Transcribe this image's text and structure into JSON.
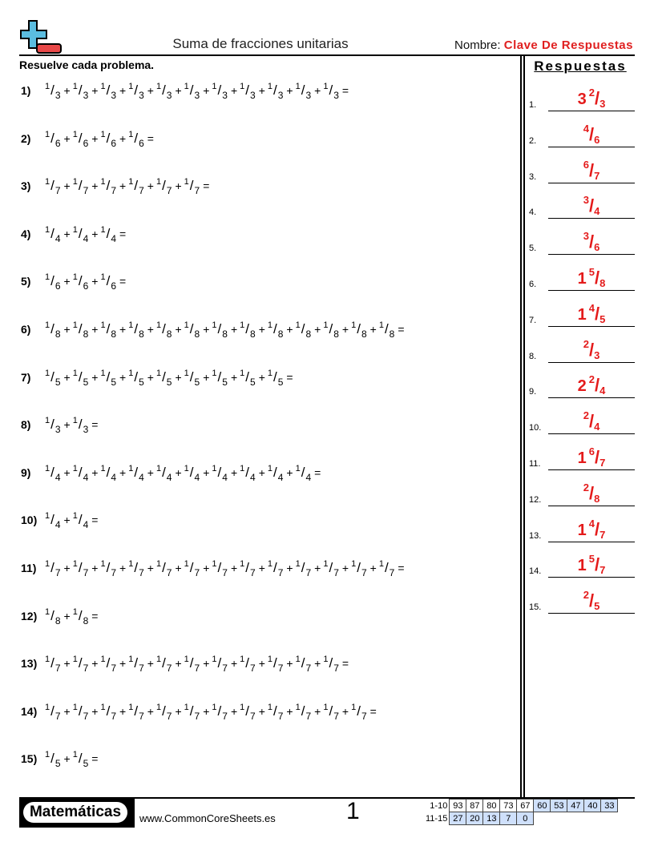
{
  "header": {
    "title": "Suma de fracciones unitarias",
    "name_label": "Nombre:",
    "name_value": "Clave De Respuestas"
  },
  "instructions": "Resuelve cada problema.",
  "answers_title": "Respuestas",
  "problems": [
    {
      "num": "1)",
      "n": "1",
      "d": "3",
      "count": 11
    },
    {
      "num": "2)",
      "n": "1",
      "d": "6",
      "count": 4
    },
    {
      "num": "3)",
      "n": "1",
      "d": "7",
      "count": 6
    },
    {
      "num": "4)",
      "n": "1",
      "d": "4",
      "count": 3
    },
    {
      "num": "5)",
      "n": "1",
      "d": "6",
      "count": 3
    },
    {
      "num": "6)",
      "n": "1",
      "d": "8",
      "count": 13
    },
    {
      "num": "7)",
      "n": "1",
      "d": "5",
      "count": 9
    },
    {
      "num": "8)",
      "n": "1",
      "d": "3",
      "count": 2
    },
    {
      "num": "9)",
      "n": "1",
      "d": "4",
      "count": 10
    },
    {
      "num": "10)",
      "n": "1",
      "d": "4",
      "count": 2
    },
    {
      "num": "11)",
      "n": "1",
      "d": "7",
      "count": 13
    },
    {
      "num": "12)",
      "n": "1",
      "d": "8",
      "count": 2
    },
    {
      "num": "13)",
      "n": "1",
      "d": "7",
      "count": 11
    },
    {
      "num": "14)",
      "n": "1",
      "d": "7",
      "count": 12
    },
    {
      "num": "15)",
      "n": "1",
      "d": "5",
      "count": 2
    }
  ],
  "plus": "+",
  "equals": "=",
  "slash": "/",
  "answers": [
    {
      "label": "1.",
      "whole": "3",
      "n": "2",
      "d": "3"
    },
    {
      "label": "2.",
      "whole": "",
      "n": "4",
      "d": "6"
    },
    {
      "label": "3.",
      "whole": "",
      "n": "6",
      "d": "7"
    },
    {
      "label": "4.",
      "whole": "",
      "n": "3",
      "d": "4"
    },
    {
      "label": "5.",
      "whole": "",
      "n": "3",
      "d": "6"
    },
    {
      "label": "6.",
      "whole": "1",
      "n": "5",
      "d": "8"
    },
    {
      "label": "7.",
      "whole": "1",
      "n": "4",
      "d": "5"
    },
    {
      "label": "8.",
      "whole": "",
      "n": "2",
      "d": "3"
    },
    {
      "label": "9.",
      "whole": "2",
      "n": "2",
      "d": "4"
    },
    {
      "label": "10.",
      "whole": "",
      "n": "2",
      "d": "4"
    },
    {
      "label": "11.",
      "whole": "1",
      "n": "6",
      "d": "7"
    },
    {
      "label": "12.",
      "whole": "",
      "n": "2",
      "d": "8"
    },
    {
      "label": "13.",
      "whole": "1",
      "n": "4",
      "d": "7"
    },
    {
      "label": "14.",
      "whole": "1",
      "n": "5",
      "d": "7"
    },
    {
      "label": "15.",
      "whole": "",
      "n": "2",
      "d": "5"
    }
  ],
  "footer": {
    "brand": "Matemáticas",
    "site": "www.CommonCoreSheets.es",
    "page": "1",
    "score_rows": [
      {
        "label": "1-10",
        "cells": [
          "93",
          "87",
          "80",
          "73",
          "67",
          "60",
          "53",
          "47",
          "40",
          "33"
        ]
      },
      {
        "label": "11-15",
        "cells": [
          "27",
          "20",
          "13",
          "7",
          "0"
        ]
      }
    ]
  },
  "colors": {
    "accent": "#e41b1b",
    "score_highlight": "#cfe0fb",
    "logo_plus": "#5bbde0",
    "logo_minus": "#e84848"
  }
}
